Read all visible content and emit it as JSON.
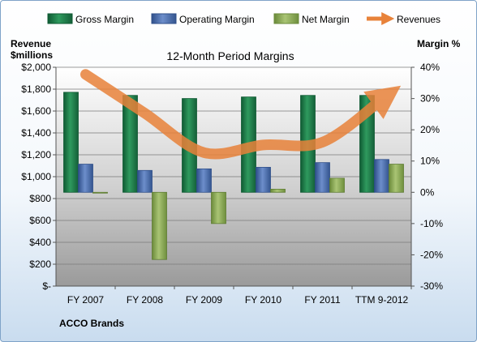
{
  "chart_data": {
    "type": "bar",
    "title": "12-Month Period Margins",
    "company": "ACCO Brands",
    "y_left_label_line1": "Revenue",
    "y_left_label_line2": "$millions",
    "y_right_label": "Margin %",
    "categories": [
      "FY 2007",
      "FY 2008",
      "FY 2009",
      "FY 2010",
      "FY 2011",
      "TTM 9-2012"
    ],
    "y_left_ticks": [
      "$2,000",
      "$1,800",
      "$1,600",
      "$1,400",
      "$1,200",
      "$1,000",
      "$800",
      "$600",
      "$400",
      "$200",
      "$-"
    ],
    "y_right_ticks": [
      "40%",
      "30%",
      "20%",
      "10%",
      "0%",
      "-10%",
      "-20%",
      "-30%"
    ],
    "ylim_left": [
      0,
      2000
    ],
    "ylim_right": [
      -30,
      40
    ],
    "series": [
      {
        "name": "Gross Margin",
        "kind": "bar",
        "axis": "right",
        "color": "#1e7a4a",
        "values": [
          32.0,
          31.0,
          30.0,
          30.5,
          31.0,
          31.0
        ]
      },
      {
        "name": "Operating Margin",
        "kind": "bar",
        "axis": "right",
        "color": "#4a6fb0",
        "values": [
          9.0,
          7.0,
          7.5,
          8.0,
          9.5,
          10.5
        ]
      },
      {
        "name": "Net Margin",
        "kind": "bar",
        "axis": "right",
        "color": "#8fae5a",
        "values": [
          0.0,
          -21.5,
          -10.0,
          1.0,
          4.5,
          9.0
        ]
      },
      {
        "name": "Revenues",
        "kind": "line",
        "axis": "left",
        "color": "#e8823a",
        "values": [
          1935,
          1580,
          1220,
          1290,
          1315,
          1705
        ]
      }
    ],
    "legend_position": "top",
    "grid": true
  }
}
